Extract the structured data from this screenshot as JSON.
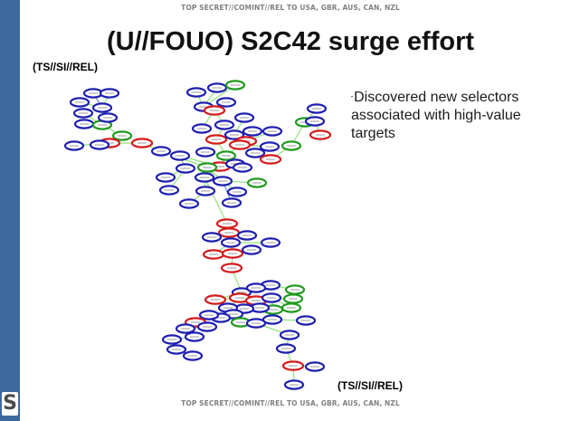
{
  "slide": {
    "classification_top": "TOP SECRET//COMINT//REL TO USA, GBR, AUS, CAN, NZL",
    "classification_bottom": "TOP SECRET//COMINT//REL TO USA, GBR, AUS, CAN, NZL",
    "title": "(U//FOUO) S2C42 surge effort",
    "marking_upper": "(TS//SI//REL)",
    "marking_lower": "(TS//SI//REL)",
    "bullet": "Discovered new selectors associated with high-value targets",
    "logo_letter": "S"
  },
  "colors": {
    "sidebar": "#3d6a9e",
    "node_blue": "#1f1fb0",
    "node_red": "#d41a1a",
    "node_green": "#1f9a1f",
    "edge": "#8fe37a",
    "edge_blue": "#6d8fd8"
  }
}
